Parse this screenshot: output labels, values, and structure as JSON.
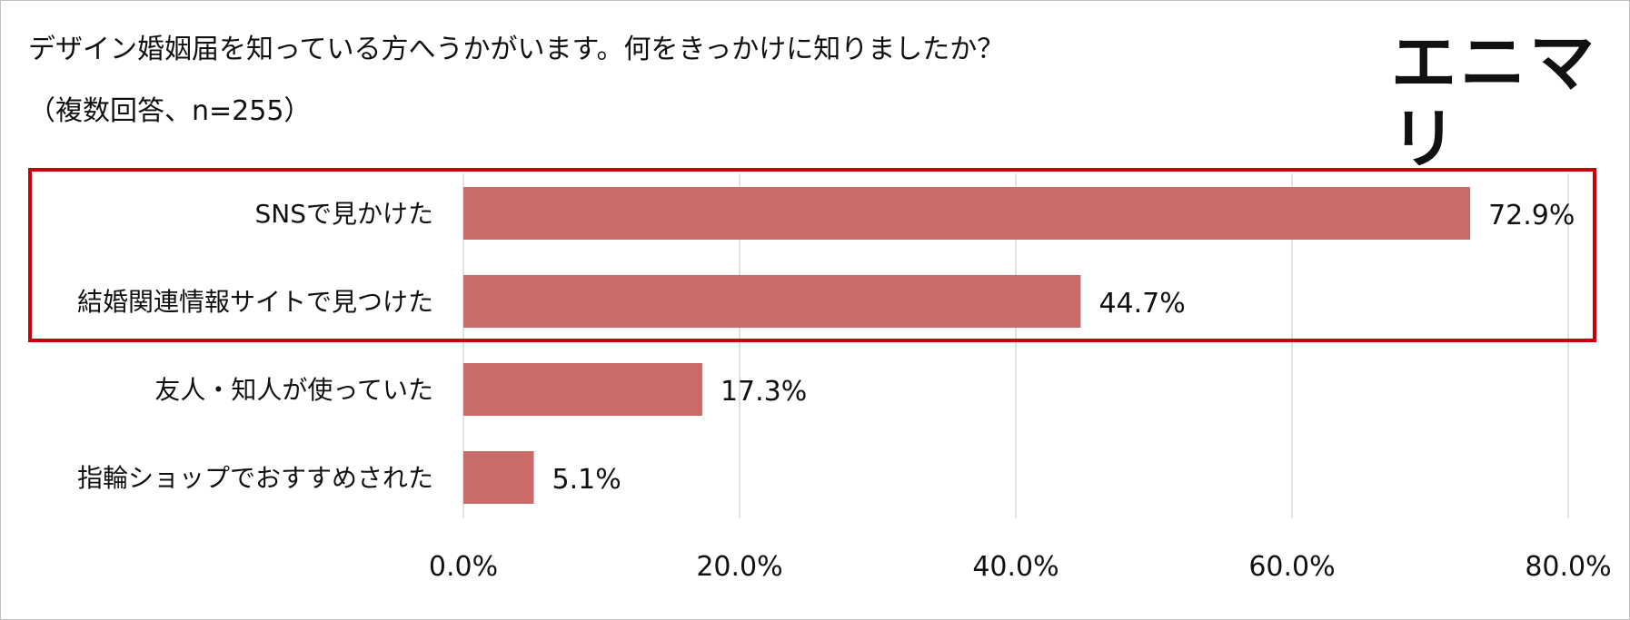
{
  "title": "デザイン婚姻届を知っている方へうかがいます。何をきっかけに知りましたか？",
  "subtitle": "（複数回答、n=255）",
  "logo_text": "エニマリ",
  "colors": {
    "bar": "#c96b66",
    "highlight_border": "#c9000b",
    "grid": "#d9d9d9"
  },
  "chart_data": {
    "type": "bar",
    "orientation": "horizontal",
    "title": "デザイン婚姻届を知っている方へうかがいます。何をきっかけに知りましたか？",
    "subtitle": "（複数回答、n=255）",
    "categories": [
      "SNSで見かけた",
      "結婚関連情報サイトで見つけた",
      "友人・知人が使っていた",
      "指輪ショップでおすすめされた"
    ],
    "values": [
      72.9,
      44.7,
      17.3,
      5.1
    ],
    "value_labels": [
      "72.9%",
      "44.7%",
      "17.3%",
      "5.1%"
    ],
    "xlim": [
      0,
      80
    ],
    "xticks": [
      0,
      20,
      40,
      60,
      80
    ],
    "xtick_labels": [
      "0.0%",
      "20.0%",
      "40.0%",
      "60.0%",
      "80.0%"
    ],
    "grid": "vertical",
    "highlighted_categories": [
      "SNSで見かけた",
      "結婚関連情報サイトで見つけた"
    ]
  }
}
